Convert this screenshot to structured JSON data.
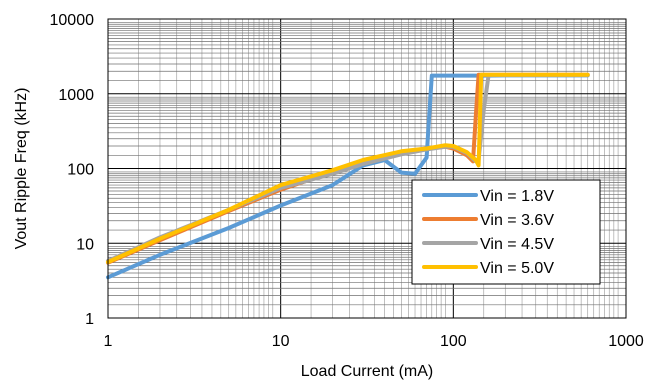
{
  "chart_data": {
    "type": "line",
    "title": "",
    "xlabel": "Load Current (mA)",
    "ylabel": "Vout Ripple Freq (kHz)",
    "x_scale": "log",
    "y_scale": "log",
    "xlim": [
      1,
      1000
    ],
    "ylim": [
      1,
      10000
    ],
    "x_ticks": [
      "1",
      "10",
      "100",
      "1000"
    ],
    "y_ticks": [
      "1",
      "10",
      "100",
      "1000",
      "10000"
    ],
    "grid": true,
    "legend_position": "right-center",
    "series": [
      {
        "name": "Vin = 1.8V",
        "color": "#5b9bd5",
        "x": [
          1,
          2,
          5,
          10,
          20,
          30,
          40,
          50,
          60,
          65,
          70,
          72,
          75,
          100,
          130,
          150,
          200,
          300,
          400,
          500,
          600
        ],
        "y": [
          3.5,
          7,
          16,
          32,
          60,
          110,
          130,
          88,
          85,
          110,
          140,
          400,
          1750,
          1750,
          1750,
          1750,
          1760,
          1760,
          1760,
          1760,
          1760
        ]
      },
      {
        "name": "Vin = 3.6V",
        "color": "#ed7d31",
        "x": [
          1,
          2,
          5,
          10,
          20,
          30,
          50,
          70,
          90,
          100,
          120,
          130,
          135,
          140,
          150,
          200,
          300,
          400,
          500,
          600
        ],
        "y": [
          5.5,
          11,
          27,
          52,
          90,
          120,
          160,
          185,
          195,
          185,
          150,
          125,
          500,
          1800,
          1800,
          1800,
          1800,
          1800,
          1800,
          1800
        ]
      },
      {
        "name": "Vin = 4.5V",
        "color": "#a5a5a5",
        "x": [
          1,
          2,
          5,
          10,
          20,
          30,
          50,
          70,
          90,
          100,
          120,
          135,
          140,
          150,
          160,
          200,
          300,
          400,
          500,
          600
        ],
        "y": [
          5.8,
          12,
          28,
          55,
          85,
          115,
          155,
          180,
          195,
          195,
          160,
          125,
          130,
          600,
          1780,
          1780,
          1780,
          1780,
          1780,
          1780
        ]
      },
      {
        "name": "Vin = 5.0V",
        "color": "#ffc000",
        "x": [
          1,
          2,
          5,
          10,
          20,
          30,
          50,
          70,
          90,
          100,
          120,
          135,
          140,
          145,
          150,
          200,
          300,
          400,
          500,
          600
        ],
        "y": [
          5.6,
          11.5,
          28,
          60,
          95,
          130,
          170,
          185,
          205,
          200,
          165,
          130,
          110,
          1800,
          1800,
          1800,
          1800,
          1800,
          1800,
          1800
        ]
      }
    ]
  }
}
